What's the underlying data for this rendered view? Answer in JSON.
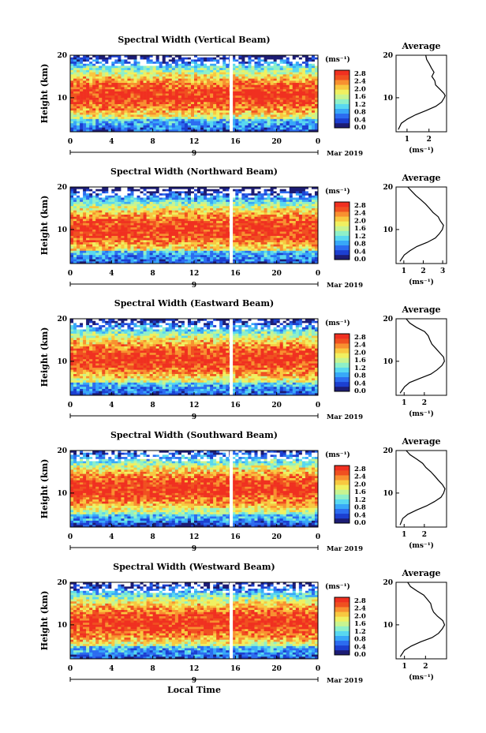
{
  "figure": {
    "x_title": "Local Time",
    "date_label": "Mar 2019",
    "avg_title": "Average"
  },
  "colorbar": {
    "unit": "(ms⁻¹)",
    "ticks": [
      "2.8",
      "2.4",
      "2.0",
      "1.6",
      "1.2",
      "0.8",
      "0.4",
      "0.0"
    ]
  },
  "chart_data": [
    {
      "type": "heatmap",
      "title": "Spectral Width (Vertical Beam)",
      "ylabel": "Height (km)",
      "xlabel": "Local Time",
      "xlim": [
        0,
        24
      ],
      "ylim": [
        2,
        20
      ],
      "xticks": [
        "0",
        "4",
        "8",
        "12",
        "16",
        "20",
        "0"
      ],
      "yticks": [
        "10",
        "20"
      ],
      "day_marker": "9",
      "core_height_km": 10.5,
      "data_gap_hour": 15.6,
      "avg_profile": {
        "type": "line",
        "xlabel": "(ms⁻¹)",
        "xticks": [
          "1",
          "2"
        ],
        "xlim": [
          0.5,
          2.8
        ],
        "height_km": [
          2.5,
          4,
          5,
          6,
          7,
          8,
          9,
          10,
          10.5,
          11,
          12,
          13,
          14,
          15,
          16,
          17,
          18,
          19,
          20
        ],
        "width_ms": [
          0.6,
          0.75,
          1.0,
          1.4,
          1.9,
          2.3,
          2.55,
          2.7,
          2.75,
          2.7,
          2.5,
          2.3,
          2.25,
          2.15,
          2.2,
          2.1,
          2.0,
          1.9,
          1.85
        ]
      }
    },
    {
      "type": "heatmap",
      "title": "Spectral Width (Northward Beam)",
      "ylabel": "Height (km)",
      "xlabel": "Local Time",
      "xlim": [
        0,
        24
      ],
      "ylim": [
        2,
        20
      ],
      "xticks": [
        "0",
        "4",
        "8",
        "12",
        "16",
        "20",
        "0"
      ],
      "yticks": [
        "10",
        "20"
      ],
      "day_marker": "9",
      "core_height_km": 10,
      "data_gap_hour": 15.6,
      "avg_profile": {
        "type": "line",
        "xlabel": "(ms⁻¹)",
        "xticks": [
          "1",
          "2",
          "3"
        ],
        "xlim": [
          0.6,
          3.2
        ],
        "height_km": [
          2.5,
          4,
          5,
          6,
          7,
          8,
          9,
          10,
          11,
          12,
          13,
          14,
          15,
          16,
          17,
          18,
          19,
          20
        ],
        "width_ms": [
          0.8,
          1.0,
          1.3,
          1.7,
          2.2,
          2.6,
          2.85,
          3.0,
          3.05,
          2.9,
          2.75,
          2.5,
          2.3,
          2.1,
          1.9,
          1.6,
          1.4,
          1.2
        ]
      }
    },
    {
      "type": "heatmap",
      "title": "Spectral Width (Eastward Beam)",
      "ylabel": "Height (km)",
      "xlabel": "Local Time",
      "xlim": [
        0,
        24
      ],
      "ylim": [
        2,
        20
      ],
      "xticks": [
        "0",
        "4",
        "8",
        "12",
        "16",
        "20",
        "0"
      ],
      "yticks": [
        "10",
        "20"
      ],
      "day_marker": "9",
      "core_height_km": 10.5,
      "data_gap_hour": 15.6,
      "avg_profile": {
        "type": "line",
        "xlabel": "(ms⁻¹)",
        "xticks": [
          "1",
          "2"
        ],
        "xlim": [
          0.6,
          3.1
        ],
        "height_km": [
          2.5,
          4,
          5,
          6,
          7,
          8,
          9,
          10,
          11,
          12,
          13,
          14,
          15,
          16,
          17,
          18,
          19,
          20
        ],
        "width_ms": [
          0.8,
          1.0,
          1.3,
          1.8,
          2.3,
          2.65,
          2.9,
          3.0,
          2.95,
          2.75,
          2.55,
          2.4,
          2.3,
          2.2,
          2.0,
          1.6,
          1.3,
          1.1
        ]
      }
    },
    {
      "type": "heatmap",
      "title": "Spectral Width (Southward Beam)",
      "ylabel": "Height (km)",
      "xlabel": "Local Time",
      "xlim": [
        0,
        24
      ],
      "ylim": [
        2,
        20
      ],
      "xticks": [
        "0",
        "4",
        "8",
        "12",
        "16",
        "20",
        "0"
      ],
      "yticks": [
        "10",
        "20"
      ],
      "day_marker": "9",
      "core_height_km": 11,
      "data_gap_hour": 15.6,
      "avg_profile": {
        "type": "line",
        "xlabel": "(ms⁻¹)",
        "xticks": [
          "1",
          "2"
        ],
        "xlim": [
          0.6,
          3.1
        ],
        "height_km": [
          2.5,
          4,
          5,
          6,
          7,
          8,
          9,
          10,
          11,
          12,
          13,
          14,
          15,
          16,
          17,
          18,
          19,
          20
        ],
        "width_ms": [
          0.8,
          0.95,
          1.2,
          1.6,
          2.1,
          2.5,
          2.8,
          2.95,
          3.0,
          2.9,
          2.7,
          2.5,
          2.3,
          2.1,
          1.9,
          1.6,
          1.3,
          1.1
        ]
      }
    },
    {
      "type": "heatmap",
      "title": "Spectral Width (Westward Beam)",
      "ylabel": "Height (km)",
      "xlabel": "Local Time",
      "xlim": [
        0,
        24
      ],
      "ylim": [
        2,
        20
      ],
      "xticks": [
        "0",
        "4",
        "8",
        "12",
        "16",
        "20",
        "0"
      ],
      "yticks": [
        "10",
        "20"
      ],
      "day_marker": "9",
      "core_height_km": 10.5,
      "data_gap_hour": 15.6,
      "avg_profile": {
        "type": "line",
        "xlabel": "(ms⁻¹)",
        "xticks": [
          "1",
          "2"
        ],
        "xlim": [
          0.6,
          3.0
        ],
        "height_km": [
          2.5,
          4,
          5,
          6,
          7,
          8,
          9,
          10,
          11,
          12,
          13,
          14,
          15,
          16,
          17,
          18,
          19,
          20
        ],
        "width_ms": [
          0.8,
          1.0,
          1.3,
          1.8,
          2.3,
          2.6,
          2.8,
          2.9,
          2.85,
          2.6,
          2.4,
          2.3,
          2.25,
          2.1,
          1.9,
          1.6,
          1.3,
          1.15
        ]
      }
    }
  ]
}
